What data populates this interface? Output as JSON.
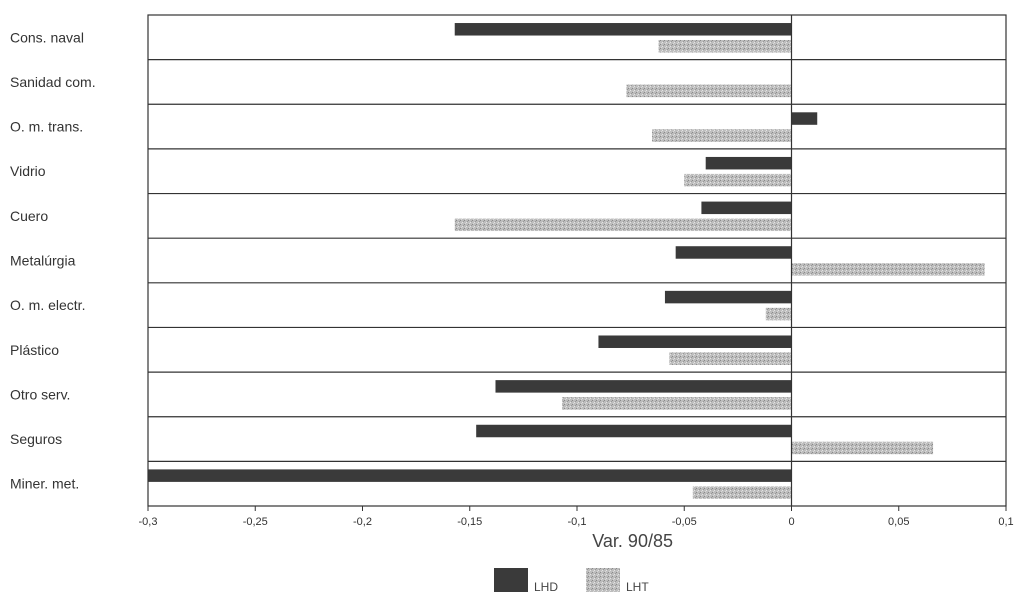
{
  "chart_data": {
    "type": "bar",
    "orientation": "horizontal",
    "categories": [
      "Cons. naval",
      "Sanidad com.",
      "O. m. trans.",
      "Vidrio",
      "Cuero",
      "Metalúrgia",
      "O. m. electr.",
      "Plástico",
      "Otro serv.",
      "Seguros",
      "Miner. met."
    ],
    "series": [
      {
        "name": "LHD",
        "values": [
          -0.157,
          0,
          0.012,
          -0.04,
          -0.042,
          -0.054,
          -0.059,
          -0.09,
          -0.138,
          -0.147,
          -0.3
        ]
      },
      {
        "name": "LHT",
        "values": [
          -0.062,
          -0.077,
          -0.065,
          -0.05,
          -0.157,
          0.09,
          -0.012,
          -0.057,
          -0.107,
          0.066,
          -0.046
        ]
      }
    ],
    "xlabel": "Var. 90/85",
    "xlim": [
      -0.3,
      0.1
    ],
    "xticks": [
      -0.3,
      -0.25,
      -0.2,
      -0.15,
      -0.1,
      -0.05,
      0,
      0.05,
      0.1
    ],
    "xtick_labels": [
      "-0,3",
      "-0,25",
      "-0,2",
      "-0,15",
      "-0,1",
      "-0,05",
      "0",
      "0,05",
      "0,1"
    ],
    "gridlines": "horizontal category separators",
    "legend_position": "bottom-center",
    "colors": {
      "LHD": "#3a3a3a",
      "LHT": "#b8b8b8",
      "frame": "#333333"
    }
  }
}
